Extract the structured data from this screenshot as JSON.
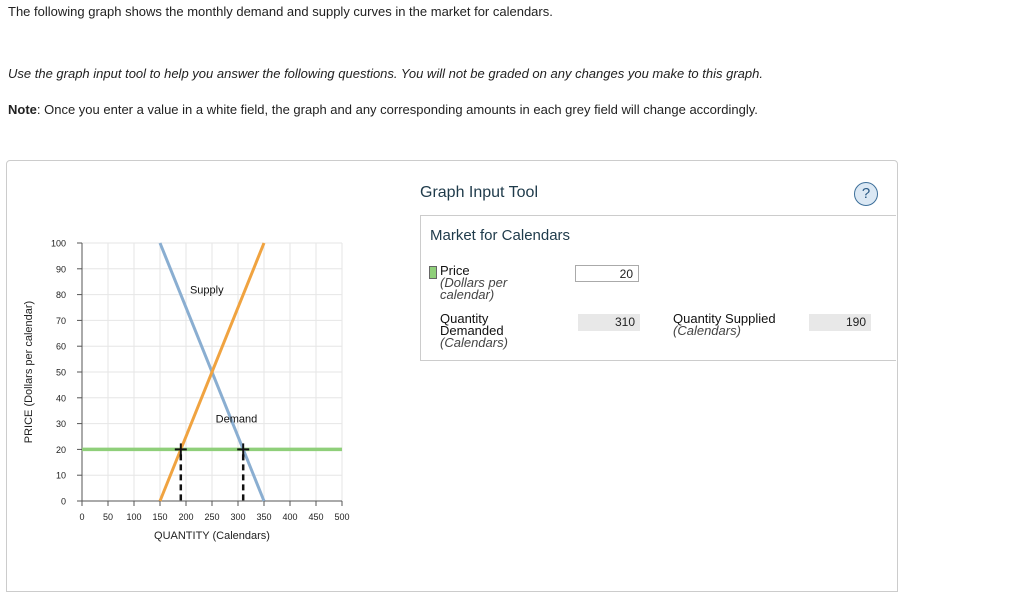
{
  "intro": "The following graph shows the monthly demand and supply curves in the market for calendars.",
  "instructions": "Use the graph input tool to help you answer the following questions. You will not be graded on any changes you make to this graph.",
  "note": {
    "label": "Note",
    "text": ": Once you enter a value in a white field, the graph and any corresponding amounts in each grey field will change accordingly."
  },
  "tool": {
    "title": "Graph Input Tool",
    "help_glyph": "?",
    "market_title": "Market for Calendars",
    "price": {
      "label": "Price",
      "unit_line1": "(Dollars per",
      "unit_line2": "calendar)",
      "value": "20",
      "swatch_color": "#8fcf7a"
    },
    "quantity_demanded": {
      "label_line1": "Quantity",
      "label_line2": "Demanded",
      "unit": "(Calendars)",
      "value": "310"
    },
    "quantity_supplied": {
      "label": "Quantity Supplied",
      "unit": "(Calendars)",
      "value": "190"
    }
  },
  "chart_data": {
    "type": "line",
    "xlabel": "QUANTITY (Calendars)",
    "ylabel": "PRICE (Dollars per calendar)",
    "xlim": [
      0,
      500
    ],
    "ylim": [
      0,
      100
    ],
    "x_ticks": [
      "0",
      "50",
      "100",
      "150",
      "200",
      "250",
      "300",
      "350",
      "400",
      "450",
      "500"
    ],
    "y_ticks": [
      "0",
      "10",
      "20",
      "30",
      "40",
      "50",
      "60",
      "70",
      "80",
      "90",
      "100"
    ],
    "grid": true,
    "series": [
      {
        "name": "Demand",
        "color": "#8aaed1",
        "points": [
          [
            150,
            100
          ],
          [
            350,
            0
          ]
        ]
      },
      {
        "name": "Supply",
        "color": "#f0a340",
        "points": [
          [
            150,
            0
          ],
          [
            350,
            100
          ]
        ]
      }
    ],
    "price_line": {
      "y": 20,
      "color": "#8fcf7a"
    },
    "markers": [
      {
        "x": 190,
        "y": 20,
        "name": "quantity-supplied-marker"
      },
      {
        "x": 310,
        "y": 20,
        "name": "quantity-demanded-marker"
      }
    ],
    "colors": {
      "demand": "#8aaed1",
      "supply": "#f0a340",
      "price": "#8fcf7a"
    }
  }
}
